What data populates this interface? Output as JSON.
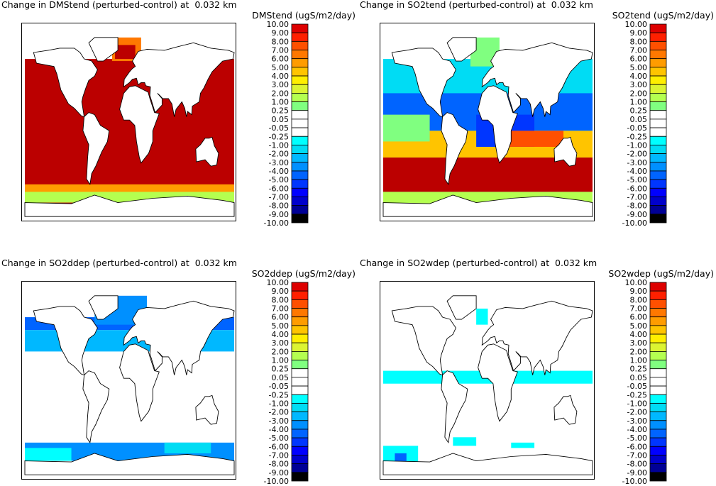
{
  "colorbar": {
    "levels": [
      10.0,
      9.0,
      8.0,
      7.0,
      6.0,
      5.0,
      4.0,
      3.0,
      2.0,
      1.0,
      0.25,
      0.05,
      -0.05,
      -0.25,
      -1.0,
      -2.0,
      -3.0,
      -4.0,
      -5.0,
      -6.0,
      -7.0,
      -8.0,
      -9.0,
      -10.0
    ],
    "labels": [
      "10.00",
      "9.00",
      "8.00",
      "7.00",
      "6.00",
      "5.00",
      "4.00",
      "3.00",
      "2.00",
      "1.00",
      "0.25",
      "0.05",
      "-0.05",
      "-0.25",
      "-1.00",
      "-2.00",
      "-3.00",
      "-4.00",
      "-5.00",
      "-6.00",
      "-7.00",
      "-8.00",
      "-9.00",
      "-10.00"
    ],
    "colors": [
      "#dd0000",
      "#ff2000",
      "#ff5000",
      "#ff7800",
      "#ff9c00",
      "#ffc400",
      "#ffee00",
      "#dcf432",
      "#b4ff50",
      "#80ff80",
      "#ffffff",
      "#ffffff",
      "#ffffff",
      "#00ffff",
      "#00dcf4",
      "#00b8ff",
      "#0090ff",
      "#0064ff",
      "#0036ff",
      "#0000ff",
      "#0000cc",
      "#000096",
      "#000000"
    ]
  },
  "chart_data": [
    {
      "type": "heatmap",
      "title": "Change in DMStend (perturbed-control) at  0.032 km",
      "colorbar_label": "DMStend (ugS/m2/day)",
      "variable": "DMStend",
      "altitude_km": 0.032,
      "units": "ugS/m2/day",
      "range": [
        -10,
        10
      ],
      "pattern": "strong positive change over nearly all oceans"
    },
    {
      "type": "heatmap",
      "title": "Change in SO2tend (perturbed-control) at  0.032 km",
      "colorbar_label": "SO2tend (ugS/m2/day)",
      "variable": "SO2tend",
      "altitude_km": 0.032,
      "units": "ugS/m2/day",
      "range": [
        -10,
        10
      ],
      "pattern": "mixed positive (southern oceans) and negative (coastal/tropical) changes"
    },
    {
      "type": "heatmap",
      "title": "Change in SO2ddep (perturbed-control) at  0.032 km",
      "colorbar_label": "SO2ddep (ugS/m2/day)",
      "variable": "SO2ddep",
      "altitude_km": 0.032,
      "units": "ugS/m2/day",
      "range": [
        -10,
        10
      ],
      "pattern": "negative changes along coasts and high latitudes"
    },
    {
      "type": "heatmap",
      "title": "Change in SO2wdep (perturbed-control) at  0.032 km",
      "colorbar_label": "SO2wdep (ugS/m2/day)",
      "variable": "SO2wdep",
      "altitude_km": 0.032,
      "units": "ugS/m2/day",
      "range": [
        -10,
        10
      ],
      "pattern": "small negative changes in tropics and southern ocean"
    }
  ]
}
